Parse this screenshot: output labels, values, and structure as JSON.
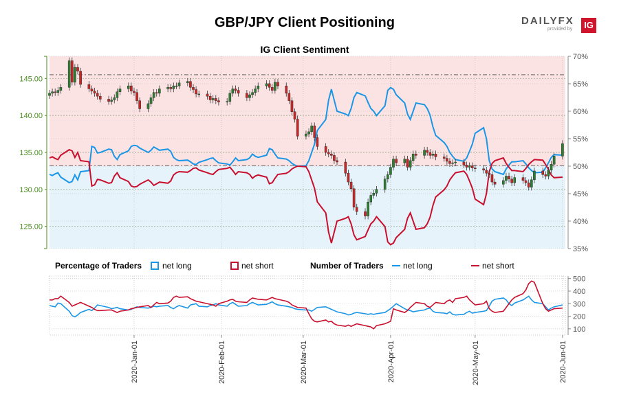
{
  "header": {
    "title": "GBP/JPY Client Positioning",
    "subtitle": "IG Client Sentiment",
    "logo_text": "DAILYFX",
    "logo_provided": "provided by",
    "logo_badge": "IG"
  },
  "colors": {
    "net_long": "#1a96e6",
    "net_short": "#c8102e",
    "candle_up": "#2e7d32",
    "candle_down": "#c62828",
    "bg_short": "#fbe3e4",
    "bg_long": "#e6f3fb",
    "price_axis": "#4a8c1c"
  },
  "legend": {
    "pct_title": "Percentage of Traders",
    "num_title": "Number of Traders",
    "net_long": "net long",
    "net_short": "net short"
  },
  "chart_data": [
    {
      "type": "candlestick",
      "name": "price",
      "title": "",
      "ylim": [
        122,
        148
      ],
      "yticks": [
        125,
        130,
        135,
        140,
        145
      ],
      "ytick_labels": [
        "125.00",
        "130.00",
        "135.00",
        "140.00",
        "145.00"
      ],
      "reference_lines": [
        145.5,
        133.2
      ],
      "x_dates": [
        "2019-12-02",
        "2019-12-03",
        "2019-12-04",
        "2019-12-05",
        "2019-12-06",
        "2019-12-09",
        "2019-12-10",
        "2019-12-11",
        "2019-12-12",
        "2019-12-13",
        "2019-12-16",
        "2019-12-17",
        "2019-12-18",
        "2019-12-19",
        "2019-12-20",
        "2019-12-23",
        "2019-12-24",
        "2019-12-25",
        "2019-12-26",
        "2019-12-27",
        "2019-12-30",
        "2019-12-31",
        "2020-01-01",
        "2020-01-02",
        "2020-01-03",
        "2020-01-06",
        "2020-01-07",
        "2020-01-08",
        "2020-01-09",
        "2020-01-10",
        "2020-01-13",
        "2020-01-14",
        "2020-01-15",
        "2020-01-16",
        "2020-01-17",
        "2020-01-20",
        "2020-01-21",
        "2020-01-22",
        "2020-01-23",
        "2020-01-24",
        "2020-01-27",
        "2020-01-28",
        "2020-01-29",
        "2020-01-30",
        "2020-01-31",
        "2020-02-03",
        "2020-02-04",
        "2020-02-05",
        "2020-02-06",
        "2020-02-07",
        "2020-02-10",
        "2020-02-11",
        "2020-02-12",
        "2020-02-13",
        "2020-02-14",
        "2020-02-17",
        "2020-02-18",
        "2020-02-19",
        "2020-02-20",
        "2020-02-21",
        "2020-02-24",
        "2020-02-25",
        "2020-02-26",
        "2020-02-27",
        "2020-02-28",
        "2020-03-02",
        "2020-03-03",
        "2020-03-04",
        "2020-03-05",
        "2020-03-06",
        "2020-03-09",
        "2020-03-10",
        "2020-03-11",
        "2020-03-12",
        "2020-03-13",
        "2020-03-16",
        "2020-03-17",
        "2020-03-18",
        "2020-03-19",
        "2020-03-20",
        "2020-03-23",
        "2020-03-24",
        "2020-03-25",
        "2020-03-26",
        "2020-03-27",
        "2020-03-30",
        "2020-03-31",
        "2020-04-01",
        "2020-04-02",
        "2020-04-03",
        "2020-04-06",
        "2020-04-07",
        "2020-04-08",
        "2020-04-09",
        "2020-04-10",
        "2020-04-13",
        "2020-04-14",
        "2020-04-15",
        "2020-04-16",
        "2020-04-17",
        "2020-04-20",
        "2020-04-21",
        "2020-04-22",
        "2020-04-23",
        "2020-04-24",
        "2020-04-27",
        "2020-04-28",
        "2020-04-29",
        "2020-04-30",
        "2020-05-01",
        "2020-05-04",
        "2020-05-05",
        "2020-05-06",
        "2020-05-07",
        "2020-05-08",
        "2020-05-11",
        "2020-05-12",
        "2020-05-13",
        "2020-05-14",
        "2020-05-15",
        "2020-05-18",
        "2020-05-19",
        "2020-05-20",
        "2020-05-21",
        "2020-05-22",
        "2020-05-25",
        "2020-05-26",
        "2020-05-27",
        "2020-05-28",
        "2020-05-29",
        "2020-06-01"
      ],
      "close": [
        143.0,
        143.2,
        143.1,
        143.4,
        143.8,
        147.4,
        144.5,
        146.5,
        146.0,
        144.2,
        143.6,
        143.3,
        143.0,
        142.6,
        142.2,
        141.9,
        142.1,
        142.4,
        143.2,
        143.6,
        144.0,
        143.3,
        143.1,
        142.0,
        140.9,
        141.6,
        142.4,
        143.1,
        143.0,
        143.6,
        143.8,
        143.6,
        144.0,
        144.0,
        144.4,
        144.6,
        143.8,
        143.5,
        142.9,
        142.9,
        142.6,
        142.1,
        142.3,
        142.0,
        141.8,
        141.9,
        143.0,
        143.6,
        143.4,
        143.0,
        142.4,
        142.8,
        143.1,
        143.6,
        144.0,
        144.3,
        143.8,
        143.4,
        144.5,
        144.0,
        143.0,
        142.0,
        140.5,
        139.5,
        137.2,
        137.5,
        137.8,
        138.6,
        137.0,
        135.8,
        135.0,
        134.8,
        134.6,
        133.9,
        133.7,
        132.2,
        131.0,
        130.1,
        127.6,
        127.0,
        126.4,
        128.3,
        129.2,
        129.5,
        130.0,
        131.4,
        132.0,
        133.0,
        134.1,
        133.6,
        134.1,
        133.0,
        133.9,
        134.8,
        134.6,
        135.3,
        135.0,
        134.6,
        134.8,
        134.4,
        134.2,
        133.8,
        133.5,
        133.6,
        133.7,
        133.3,
        133.0,
        133.2,
        132.9,
        132.8,
        132.6,
        132.2,
        132.0,
        131.0,
        130.7,
        131.2,
        131.8,
        131.4,
        130.9,
        131.6,
        131.2,
        130.9,
        130.3,
        131.3,
        132.5,
        132.0,
        131.8,
        132.6,
        133.4,
        134.5,
        136.2
      ],
      "net_long_pct": [
        48.5,
        48.3,
        48.6,
        48.8,
        48.0,
        47.0,
        47.2,
        48.4,
        47.5,
        49.0,
        49.2,
        53.6,
        53.4,
        52.4,
        52.5,
        53.1,
        53.0,
        51.8,
        51.2,
        52.1,
        52.8,
        53.6,
        53.8,
        53.7,
        53.3,
        52.5,
        52.9,
        53.5,
        53.2,
        52.9,
        53.1,
        52.7,
        51.6,
        51.2,
        51.0,
        51.1,
        50.8,
        50.4,
        50.3,
        50.7,
        51.2,
        51.4,
        51.5,
        51.0,
        50.6,
        50.4,
        50.2,
        50.8,
        51.5,
        51.0,
        51.2,
        51.5,
        52.2,
        51.8,
        51.6,
        52.0,
        53.2,
        53.0,
        52.2,
        51.5,
        51.3,
        51.0,
        50.5,
        50.2,
        50.0,
        50.1,
        51.0,
        52.5,
        54.0,
        56.5,
        58.5,
        62.0,
        64.0,
        62.0,
        60.0,
        59.5,
        59.2,
        60.5,
        62.5,
        63.4,
        62.8,
        61.6,
        60.5,
        60.0,
        59.2,
        61.0,
        63.8,
        64.3,
        64.0,
        63.0,
        61.5,
        59.5,
        58.5,
        60.0,
        61.5,
        61.2,
        60.5,
        59.3,
        57.2,
        55.6,
        54.3,
        53.6,
        52.5,
        51.8,
        51.2,
        50.9,
        51.5,
        52.7,
        54.0,
        56.0,
        57.0,
        55.0,
        51.0,
        49.5,
        49.0,
        48.5,
        49.5,
        50.2,
        50.8,
        50.8,
        51.0,
        50.4,
        49.7,
        49.2,
        48.8,
        48.9,
        49.7,
        50.6,
        51.6,
        52.1,
        52.0
      ],
      "net_short_pct": [
        51.5,
        51.7,
        51.4,
        51.2,
        52.0,
        53.0,
        52.8,
        51.6,
        52.5,
        51.0,
        50.8,
        46.4,
        46.6,
        47.6,
        47.5,
        46.9,
        47.0,
        48.2,
        48.8,
        47.9,
        47.2,
        46.4,
        46.2,
        46.3,
        46.7,
        47.5,
        47.1,
        46.5,
        46.8,
        47.1,
        46.9,
        47.3,
        48.4,
        48.8,
        49.0,
        48.9,
        49.2,
        49.6,
        49.7,
        49.3,
        48.8,
        48.6,
        48.5,
        49.0,
        49.4,
        49.6,
        49.8,
        49.2,
        48.5,
        49.0,
        48.8,
        48.5,
        47.8,
        48.2,
        48.4,
        48.0,
        46.8,
        47.0,
        47.8,
        48.5,
        48.7,
        49.0,
        49.5,
        49.8,
        50.0,
        49.9,
        49.0,
        47.5,
        46.0,
        43.5,
        41.5,
        38.0,
        36.0,
        38.0,
        40.0,
        40.5,
        40.8,
        39.5,
        37.5,
        36.6,
        37.2,
        38.4,
        39.5,
        40.0,
        40.8,
        39.0,
        36.2,
        35.7,
        36.0,
        37.0,
        38.5,
        40.5,
        41.5,
        40.0,
        38.5,
        38.8,
        39.5,
        40.7,
        42.8,
        44.4,
        45.7,
        46.4,
        47.5,
        48.2,
        48.8,
        49.1,
        48.5,
        47.3,
        46.0,
        44.0,
        43.0,
        45.0,
        49.0,
        50.5,
        51.0,
        51.5,
        50.5,
        49.8,
        49.2,
        49.2,
        49.0,
        49.6,
        50.3,
        50.8,
        51.2,
        51.1,
        50.3,
        49.4,
        48.4,
        47.9,
        48.0
      ]
    },
    {
      "type": "line",
      "name": "number_of_traders",
      "title": "",
      "ylim": [
        50,
        520
      ],
      "yticks": [
        100,
        200,
        300,
        400,
        500
      ],
      "xtick_labels": [
        "2020-Jan-01",
        "2020-Feb-01",
        "2020-Mar-01",
        "2020-Apr-01",
        "2020-May-01",
        "2020-Jun-01"
      ],
      "xtick_dates": [
        "2020-01-01",
        "2020-02-01",
        "2020-03-01",
        "2020-04-01",
        "2020-05-01",
        "2020-06-01"
      ],
      "series": [
        {
          "name": "net long",
          "values": [
            285,
            280,
            275,
            305,
            300,
            240,
            205,
            195,
            210,
            230,
            255,
            245,
            265,
            290,
            285,
            270,
            260,
            265,
            270,
            260,
            250,
            255,
            265,
            275,
            270,
            265,
            270,
            280,
            275,
            280,
            285,
            270,
            260,
            275,
            285,
            265,
            290,
            295,
            300,
            280,
            275,
            285,
            290,
            300,
            290,
            280,
            300,
            310,
            295,
            280,
            285,
            300,
            310,
            300,
            290,
            295,
            305,
            315,
            300,
            290,
            280,
            275,
            270,
            260,
            255,
            250,
            250,
            240,
            255,
            270,
            275,
            265,
            255,
            245,
            235,
            220,
            210,
            215,
            225,
            230,
            220,
            215,
            220,
            215,
            220,
            230,
            245,
            260,
            280,
            300,
            260,
            250,
            245,
            235,
            240,
            250,
            260,
            265,
            240,
            230,
            225,
            220,
            235,
            215,
            210,
            215,
            230,
            240,
            225,
            230,
            240,
            245,
            280,
            320,
            335,
            345,
            330,
            300,
            285,
            305,
            330,
            345,
            360,
            330,
            310,
            300,
            275,
            250,
            265,
            275,
            290
          ]
        },
        {
          "name": "net short",
          "values": [
            330,
            330,
            340,
            340,
            360,
            310,
            280,
            290,
            300,
            310,
            280,
            270,
            255,
            245,
            245,
            250,
            250,
            240,
            230,
            240,
            250,
            260,
            265,
            270,
            275,
            285,
            270,
            290,
            310,
            300,
            305,
            320,
            350,
            360,
            350,
            355,
            340,
            330,
            320,
            315,
            300,
            295,
            290,
            280,
            300,
            320,
            330,
            335,
            320,
            315,
            310,
            330,
            345,
            340,
            335,
            330,
            340,
            350,
            340,
            335,
            320,
            310,
            290,
            280,
            270,
            265,
            220,
            180,
            160,
            155,
            170,
            155,
            160,
            140,
            130,
            120,
            130,
            120,
            130,
            140,
            125,
            120,
            115,
            100,
            125,
            140,
            150,
            160,
            260,
            250,
            230,
            245,
            270,
            290,
            310,
            300,
            280,
            270,
            290,
            310,
            300,
            320,
            330,
            310,
            340,
            350,
            360,
            330,
            310,
            290,
            300,
            320,
            260,
            240,
            230,
            240,
            270,
            300,
            330,
            350,
            380,
            410,
            460,
            480,
            470,
            300,
            260,
            240,
            250,
            260,
            265
          ]
        }
      ]
    }
  ]
}
